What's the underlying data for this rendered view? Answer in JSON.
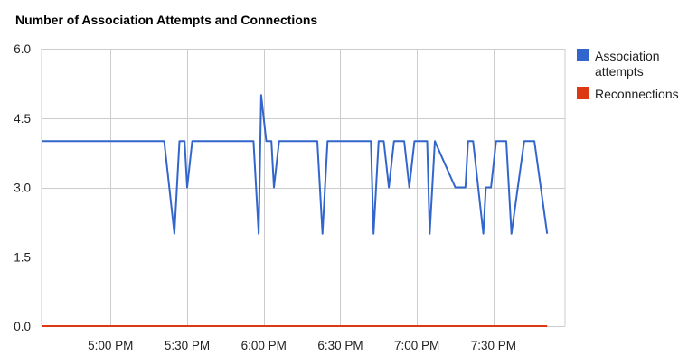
{
  "chart_data": {
    "type": "line",
    "title": "Number of Association Attempts and Connections",
    "xlabel": "",
    "ylabel": "",
    "x_range": [
      "4:33 PM",
      "7:58 PM"
    ],
    "ylim": [
      0,
      6
    ],
    "y_ticks": [
      "6.0",
      "4.5",
      "3.0",
      "1.5",
      "0.0"
    ],
    "x_ticks": [
      "5:00 PM",
      "5:30 PM",
      "6:00 PM",
      "6:30 PM",
      "7:00 PM",
      "7:30 PM"
    ],
    "grid": true,
    "legend_position": "right",
    "series": [
      {
        "name": "Association attempts",
        "color": "#3366cc",
        "points": [
          [
            "4:33 PM",
            4
          ],
          [
            "5:21 PM",
            4
          ],
          [
            "5:25 PM",
            2
          ],
          [
            "5:27 PM",
            4
          ],
          [
            "5:29 PM",
            4
          ],
          [
            "5:30 PM",
            3
          ],
          [
            "5:32 PM",
            4
          ],
          [
            "5:56 PM",
            4
          ],
          [
            "5:58 PM",
            2
          ],
          [
            "5:59 PM",
            5
          ],
          [
            "6:01 PM",
            4
          ],
          [
            "6:03 PM",
            4
          ],
          [
            "6:04 PM",
            3
          ],
          [
            "6:06 PM",
            4
          ],
          [
            "6:21 PM",
            4
          ],
          [
            "6:23 PM",
            2
          ],
          [
            "6:25 PM",
            4
          ],
          [
            "6:42 PM",
            4
          ],
          [
            "6:43 PM",
            2
          ],
          [
            "6:45 PM",
            4
          ],
          [
            "6:47 PM",
            4
          ],
          [
            "6:49 PM",
            3
          ],
          [
            "6:51 PM",
            4
          ],
          [
            "6:55 PM",
            4
          ],
          [
            "6:57 PM",
            3
          ],
          [
            "6:59 PM",
            4
          ],
          [
            "7:04 PM",
            4
          ],
          [
            "7:05 PM",
            2
          ],
          [
            "7:07 PM",
            4
          ],
          [
            "7:15 PM",
            3
          ],
          [
            "7:19 PM",
            3
          ],
          [
            "7:20 PM",
            4
          ],
          [
            "7:22 PM",
            4
          ],
          [
            "7:26 PM",
            2
          ],
          [
            "7:27 PM",
            3
          ],
          [
            "7:29 PM",
            3
          ],
          [
            "7:31 PM",
            4
          ],
          [
            "7:35 PM",
            4
          ],
          [
            "7:37 PM",
            2
          ],
          [
            "7:42 PM",
            4
          ],
          [
            "7:46 PM",
            4
          ],
          [
            "7:51 PM",
            2
          ]
        ]
      },
      {
        "name": "Reconnections",
        "color": "#dc3912",
        "points": [
          [
            "4:33 PM",
            0
          ],
          [
            "7:51 PM",
            0
          ]
        ]
      }
    ]
  }
}
